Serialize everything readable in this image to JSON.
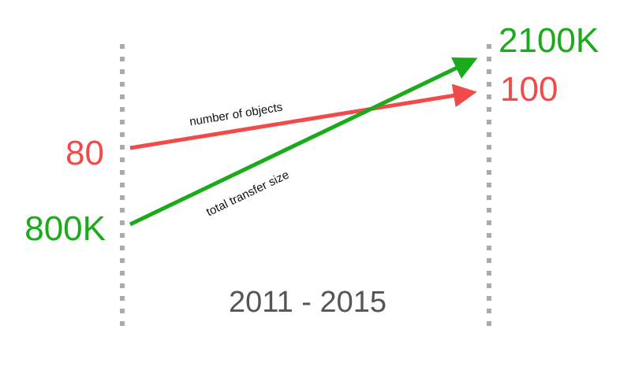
{
  "objects": {
    "label": "number of objects",
    "start": "80",
    "end": "100"
  },
  "transfer": {
    "label": "total transfer size",
    "start": "800K",
    "end": "2100K"
  },
  "period": "2011 - 2015"
}
